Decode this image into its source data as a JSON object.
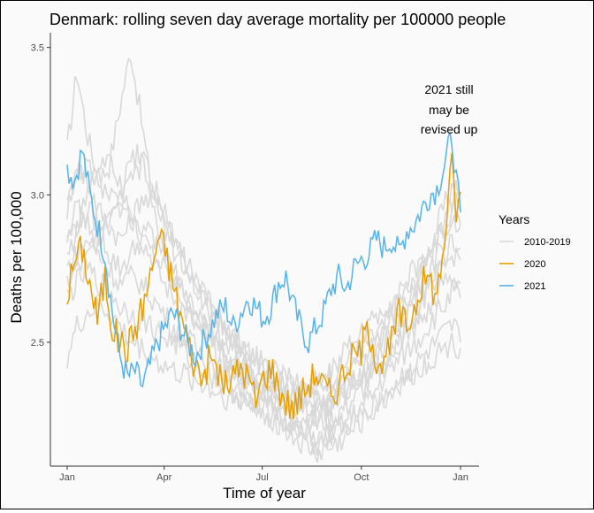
{
  "chart_data": {
    "type": "line",
    "title": "Denmark: rolling seven day average mortality per 100000 people",
    "xlabel": "Time of year",
    "ylabel": "Deaths per 100,000",
    "x_ticks": [
      {
        "label": "Jan",
        "day": 1
      },
      {
        "label": "Apr",
        "day": 91
      },
      {
        "label": "Jul",
        "day": 182
      },
      {
        "label": "Oct",
        "day": 274
      },
      {
        "label": "Jan",
        "day": 366
      }
    ],
    "xlim": [
      1,
      366
    ],
    "y_ticks": [
      2.5,
      3.0,
      3.5
    ],
    "y_tick_labels": [
      "2.5",
      "3.0",
      "3.5"
    ],
    "ylim": [
      2.08,
      3.55
    ],
    "grid": false,
    "legend": {
      "title": "Years",
      "placement": "right",
      "entries": [
        {
          "label": "2010-2019",
          "color": "#d9d9d9"
        },
        {
          "label": "2020",
          "color": "#e69f00"
        },
        {
          "label": "2021",
          "color": "#56b4e9"
        }
      ]
    },
    "annotation": {
      "lines": [
        "2021 still",
        "may be",
        "revised up"
      ]
    },
    "background_series": [
      {
        "x": [
          1,
          10,
          20,
          30,
          40,
          50,
          60,
          70,
          80,
          90,
          100,
          115,
          130,
          145,
          160,
          175,
          190,
          205,
          220,
          235,
          250,
          265,
          280,
          295,
          310,
          325,
          340,
          350,
          360,
          366
        ],
        "y": [
          3.15,
          3.42,
          3.2,
          3.05,
          3.1,
          3.3,
          3.49,
          3.25,
          3.0,
          2.95,
          2.85,
          2.7,
          2.65,
          2.55,
          2.5,
          2.45,
          2.4,
          2.35,
          2.3,
          2.35,
          2.4,
          2.45,
          2.5,
          2.55,
          2.65,
          2.7,
          2.85,
          2.95,
          3.05,
          3.0
        ]
      },
      {
        "x": [
          1,
          10,
          20,
          30,
          40,
          50,
          60,
          70,
          80,
          90,
          100,
          115,
          130,
          145,
          160,
          175,
          190,
          205,
          220,
          235,
          250,
          265,
          280,
          295,
          310,
          325,
          340,
          350,
          360,
          366
        ],
        "y": [
          2.95,
          3.1,
          3.05,
          2.95,
          2.9,
          2.85,
          2.9,
          3.0,
          2.95,
          2.85,
          2.75,
          2.65,
          2.55,
          2.5,
          2.45,
          2.4,
          2.35,
          2.3,
          2.28,
          2.3,
          2.35,
          2.4,
          2.48,
          2.55,
          2.6,
          2.7,
          2.8,
          2.9,
          3.0,
          2.95
        ]
      },
      {
        "x": [
          1,
          10,
          20,
          30,
          40,
          50,
          60,
          70,
          80,
          90,
          100,
          115,
          130,
          145,
          160,
          175,
          190,
          205,
          220,
          235,
          250,
          265,
          280,
          295,
          310,
          325,
          340,
          350,
          360,
          366
        ],
        "y": [
          2.85,
          2.9,
          2.95,
          2.9,
          2.8,
          2.75,
          2.8,
          2.85,
          2.8,
          2.75,
          2.7,
          2.6,
          2.55,
          2.45,
          2.4,
          2.35,
          2.3,
          2.25,
          2.22,
          2.25,
          2.3,
          2.35,
          2.4,
          2.45,
          2.5,
          2.6,
          2.7,
          2.75,
          2.8,
          2.78
        ]
      },
      {
        "x": [
          1,
          10,
          20,
          30,
          40,
          50,
          60,
          70,
          80,
          90,
          100,
          115,
          130,
          145,
          160,
          175,
          190,
          205,
          220,
          235,
          250,
          265,
          280,
          295,
          310,
          325,
          340,
          350,
          360,
          366
        ],
        "y": [
          2.75,
          2.8,
          2.85,
          2.8,
          2.75,
          2.7,
          2.72,
          2.7,
          2.65,
          2.6,
          2.55,
          2.5,
          2.45,
          2.4,
          2.35,
          2.3,
          2.28,
          2.25,
          2.18,
          2.15,
          2.2,
          2.25,
          2.3,
          2.38,
          2.45,
          2.5,
          2.58,
          2.62,
          2.68,
          2.65
        ]
      },
      {
        "x": [
          1,
          10,
          20,
          30,
          40,
          50,
          60,
          70,
          80,
          90,
          100,
          115,
          130,
          145,
          160,
          175,
          190,
          205,
          220,
          235,
          250,
          265,
          280,
          295,
          310,
          325,
          340,
          350,
          360,
          366
        ],
        "y": [
          2.65,
          2.7,
          2.75,
          2.7,
          2.68,
          2.62,
          2.6,
          2.58,
          2.55,
          2.52,
          2.5,
          2.45,
          2.4,
          2.36,
          2.32,
          2.28,
          2.25,
          2.2,
          2.15,
          2.12,
          2.15,
          2.2,
          2.25,
          2.3,
          2.38,
          2.42,
          2.48,
          2.52,
          2.55,
          2.5
        ]
      },
      {
        "x": [
          1,
          10,
          20,
          30,
          40,
          50,
          60,
          70,
          80,
          90,
          100,
          115,
          130,
          145,
          160,
          175,
          190,
          205,
          220,
          235,
          250,
          265,
          280,
          295,
          310,
          325,
          340,
          350,
          360,
          366
        ],
        "y": [
          2.45,
          2.55,
          2.6,
          2.62,
          2.6,
          2.55,
          2.5,
          2.48,
          2.45,
          2.42,
          2.4,
          2.38,
          2.35,
          2.32,
          2.3,
          2.28,
          2.25,
          2.22,
          2.2,
          2.18,
          2.2,
          2.22,
          2.28,
          2.32,
          2.36,
          2.4,
          2.45,
          2.48,
          2.5,
          2.48
        ]
      },
      {
        "x": [
          1,
          10,
          20,
          30,
          40,
          50,
          60,
          70,
          80,
          90,
          100,
          115,
          130,
          145,
          160,
          175,
          190,
          205,
          220,
          235,
          250,
          265,
          280,
          295,
          310,
          325,
          340,
          350,
          360,
          366
        ],
        "y": [
          3.0,
          3.05,
          3.1,
          3.05,
          3.0,
          2.95,
          3.05,
          3.1,
          3.0,
          2.9,
          2.82,
          2.72,
          2.62,
          2.55,
          2.5,
          2.44,
          2.4,
          2.38,
          2.35,
          2.38,
          2.42,
          2.5,
          2.55,
          2.62,
          2.68,
          2.75,
          2.82,
          2.88,
          2.92,
          2.9
        ]
      },
      {
        "x": [
          1,
          10,
          20,
          30,
          40,
          50,
          60,
          70,
          80,
          90,
          100,
          115,
          130,
          145,
          160,
          175,
          190,
          205,
          220,
          235,
          250,
          265,
          280,
          295,
          310,
          325,
          340,
          350,
          360,
          366
        ],
        "y": [
          2.8,
          2.88,
          3.0,
          3.1,
          3.15,
          3.05,
          2.95,
          2.9,
          2.85,
          2.8,
          2.72,
          2.62,
          2.55,
          2.48,
          2.42,
          2.38,
          2.35,
          2.32,
          2.3,
          2.28,
          2.32,
          2.36,
          2.42,
          2.5,
          2.55,
          2.62,
          2.7,
          2.78,
          2.85,
          2.82
        ]
      },
      {
        "x": [
          1,
          10,
          20,
          30,
          40,
          50,
          60,
          70,
          80,
          90,
          100,
          115,
          130,
          145,
          160,
          175,
          190,
          205,
          220,
          235,
          250,
          265,
          280,
          295,
          310,
          325,
          340,
          350,
          360,
          366
        ],
        "y": [
          2.7,
          2.75,
          2.78,
          2.85,
          2.95,
          3.0,
          2.95,
          2.85,
          2.78,
          2.7,
          2.65,
          2.58,
          2.5,
          2.45,
          2.4,
          2.35,
          2.32,
          2.3,
          2.25,
          2.22,
          2.25,
          2.3,
          2.35,
          2.42,
          2.5,
          2.55,
          2.62,
          2.7,
          2.72,
          2.7
        ]
      },
      {
        "x": [
          1,
          10,
          20,
          30,
          40,
          50,
          60,
          70,
          80,
          90,
          100,
          115,
          130,
          145,
          160,
          175,
          190,
          205,
          220,
          235,
          250,
          265,
          280,
          295,
          310,
          325,
          340,
          350,
          360,
          366
        ],
        "y": [
          2.9,
          2.95,
          2.9,
          2.85,
          2.9,
          3.0,
          3.1,
          3.15,
          3.05,
          2.95,
          2.85,
          2.75,
          2.65,
          2.55,
          2.48,
          2.42,
          2.38,
          2.35,
          2.32,
          2.3,
          2.3,
          2.35,
          2.4,
          2.5,
          2.58,
          2.65,
          2.75,
          2.85,
          2.95,
          2.9
        ]
      }
    ],
    "series_2020": {
      "x": [
        1,
        8,
        15,
        22,
        29,
        36,
        43,
        50,
        57,
        64,
        71,
        78,
        85,
        92,
        99,
        106,
        113,
        120,
        127,
        134,
        141,
        148,
        155,
        162,
        169,
        176,
        183,
        190,
        197,
        204,
        211,
        218,
        225,
        232,
        239,
        246,
        253,
        260,
        267,
        274,
        281,
        288,
        295,
        302,
        309,
        316,
        323,
        330,
        337,
        344,
        351,
        358,
        362,
        366
      ],
      "y": [
        2.66,
        2.78,
        2.82,
        2.7,
        2.58,
        2.72,
        2.55,
        2.5,
        2.48,
        2.55,
        2.62,
        2.72,
        2.85,
        2.82,
        2.7,
        2.6,
        2.5,
        2.42,
        2.38,
        2.45,
        2.4,
        2.35,
        2.38,
        2.42,
        2.38,
        2.3,
        2.38,
        2.42,
        2.35,
        2.3,
        2.28,
        2.32,
        2.36,
        2.4,
        2.35,
        2.32,
        2.36,
        2.42,
        2.45,
        2.48,
        2.55,
        2.45,
        2.42,
        2.5,
        2.6,
        2.55,
        2.62,
        2.7,
        2.72,
        2.65,
        2.85,
        3.1,
        2.95,
        3.01
      ]
    },
    "series_2021": {
      "x": [
        1,
        8,
        15,
        22,
        29,
        36,
        43,
        50,
        57,
        64,
        71,
        78,
        85,
        92,
        99,
        106,
        113,
        120,
        127,
        134,
        141,
        148,
        155,
        162,
        169,
        176,
        183,
        190,
        197,
        204,
        211,
        218,
        225,
        232,
        239,
        246,
        253,
        260,
        267,
        274,
        281,
        288,
        295,
        302,
        309,
        316,
        323,
        330,
        337,
        344,
        351,
        358,
        362,
        366
      ],
      "y": [
        3.09,
        3.05,
        3.15,
        3.0,
        2.9,
        2.8,
        2.6,
        2.45,
        2.38,
        2.4,
        2.35,
        2.42,
        2.5,
        2.55,
        2.6,
        2.55,
        2.5,
        2.45,
        2.5,
        2.55,
        2.6,
        2.62,
        2.55,
        2.6,
        2.65,
        2.62,
        2.58,
        2.62,
        2.7,
        2.72,
        2.62,
        2.55,
        2.5,
        2.55,
        2.6,
        2.68,
        2.72,
        2.68,
        2.75,
        2.78,
        2.8,
        2.85,
        2.82,
        2.85,
        2.8,
        2.88,
        2.9,
        2.95,
        3.0,
        3.02,
        3.1,
        3.2,
        3.05,
        2.94
      ]
    }
  }
}
